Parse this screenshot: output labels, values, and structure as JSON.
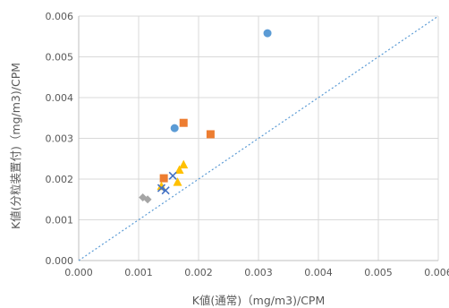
{
  "chart_data": {
    "type": "scatter",
    "xlabel": "K値(通常)（mg/m3)/CPM",
    "ylabel": "K値(分粒装置付)（mg/m3)/CPM",
    "xlim": [
      0,
      0.006
    ],
    "ylim": [
      0,
      0.006
    ],
    "x_ticks": [
      "0.000",
      "0.001",
      "0.002",
      "0.003",
      "0.004",
      "0.005",
      "0.006"
    ],
    "y_ticks": [
      "0.000",
      "0.001",
      "0.002",
      "0.003",
      "0.004",
      "0.005",
      "0.006"
    ],
    "grid": true,
    "reference_line": {
      "style": "dotted",
      "color": "#5b9bd5",
      "points": [
        [
          0,
          0
        ],
        [
          0.006,
          0.006
        ]
      ]
    },
    "series": [
      {
        "marker": "circle",
        "color": "#5b9bd5",
        "points": [
          [
            0.00315,
            0.00558
          ],
          [
            0.0016,
            0.00325
          ]
        ]
      },
      {
        "marker": "square",
        "color": "#ed7d31",
        "points": [
          [
            0.00175,
            0.00338
          ],
          [
            0.0022,
            0.0031
          ],
          [
            0.00142,
            0.00202
          ]
        ]
      },
      {
        "marker": "triangle",
        "color": "#ffc000",
        "points": [
          [
            0.00168,
            0.00222
          ],
          [
            0.00175,
            0.00235
          ],
          [
            0.00165,
            0.00192
          ],
          [
            0.00138,
            0.00182
          ]
        ]
      },
      {
        "marker": "x",
        "color": "#4472c4",
        "points": [
          [
            0.00157,
            0.00208
          ],
          [
            0.00138,
            0.00178
          ],
          [
            0.00145,
            0.00172
          ]
        ]
      },
      {
        "marker": "diamond",
        "color": "#a5a5a5",
        "points": [
          [
            0.00107,
            0.00155
          ],
          [
            0.00115,
            0.0015
          ]
        ]
      }
    ]
  }
}
